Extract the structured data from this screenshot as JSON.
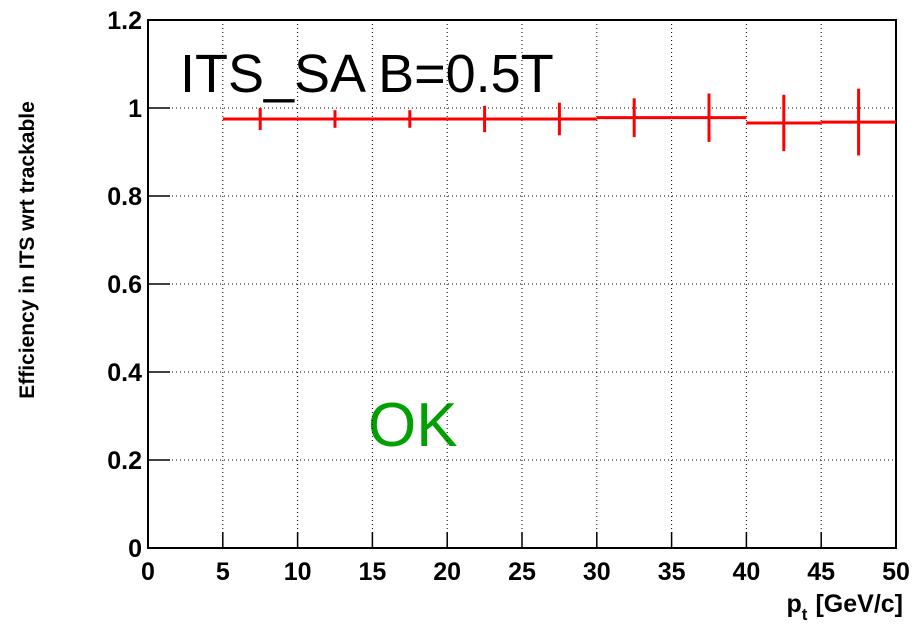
{
  "chart_data": {
    "type": "histogram",
    "title": "ITS_SA B=0.5T",
    "annotation": "OK",
    "ylabel": "Efficiency in ITS wrt trackable",
    "xlabel": "p",
    "xlabel_sub": "t",
    "xlabel_unit": "[GeV/c]",
    "bins": [
      5,
      10,
      15,
      20,
      25,
      30,
      35,
      40,
      45,
      50
    ],
    "values": [
      0.975,
      0.975,
      0.975,
      0.975,
      0.975,
      0.978,
      0.978,
      0.966,
      0.968
    ],
    "errors": [
      0.025,
      0.02,
      0.02,
      0.03,
      0.037,
      0.044,
      0.055,
      0.064,
      0.076
    ],
    "color": "#ff0000",
    "annotation_color": "#00a000",
    "xlim": [
      0,
      50
    ],
    "xticks": [
      0,
      5,
      10,
      15,
      20,
      25,
      30,
      35,
      40,
      45,
      50
    ],
    "ylim": [
      0,
      1.2
    ],
    "yticks": [
      0,
      0.2,
      0.4,
      0.6,
      0.8,
      1,
      1.2
    ],
    "grid": true
  }
}
